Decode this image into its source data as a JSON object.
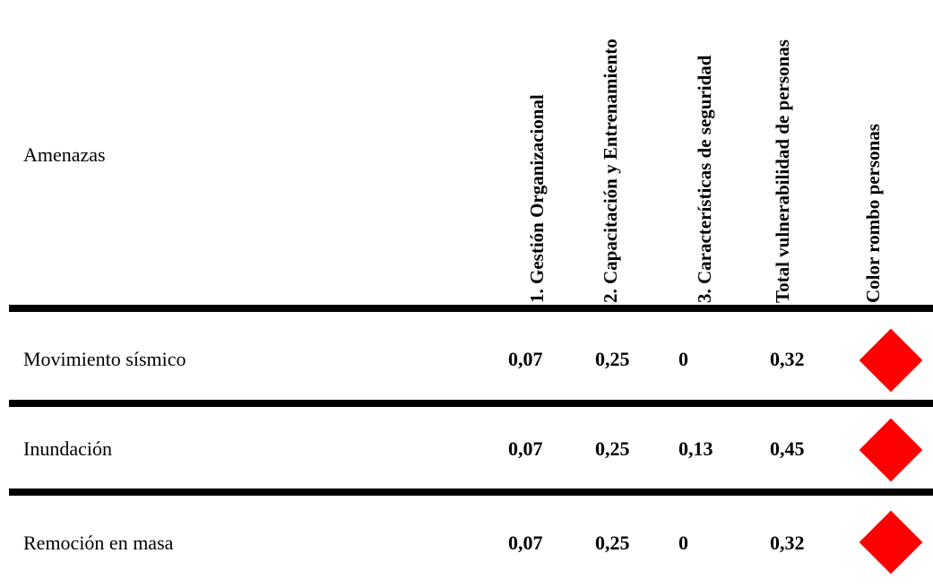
{
  "header": {
    "threat_label": "Amenazas",
    "columns": [
      "1. Gestión Organizacional",
      "2. Capacitación y Entrenamiento",
      "3. Características de seguridad",
      "Total vulnerabilidad de personas",
      "Color rombo personas"
    ]
  },
  "rows": [
    {
      "threat": "Movimiento sísmico",
      "gestion": "0,07",
      "capacitacion": "0,25",
      "seguridad": "0",
      "total": "0,32",
      "color": "#ff0000"
    },
    {
      "threat": "Inundación",
      "gestion": "0,07",
      "capacitacion": "0,25",
      "seguridad": "0,13",
      "total": "0,45",
      "color": "#ff0000"
    },
    {
      "threat": "Remoción en masa",
      "gestion": "0,07",
      "capacitacion": "0,25",
      "seguridad": "0",
      "total": "0,32",
      "color": "#ff0000"
    }
  ]
}
